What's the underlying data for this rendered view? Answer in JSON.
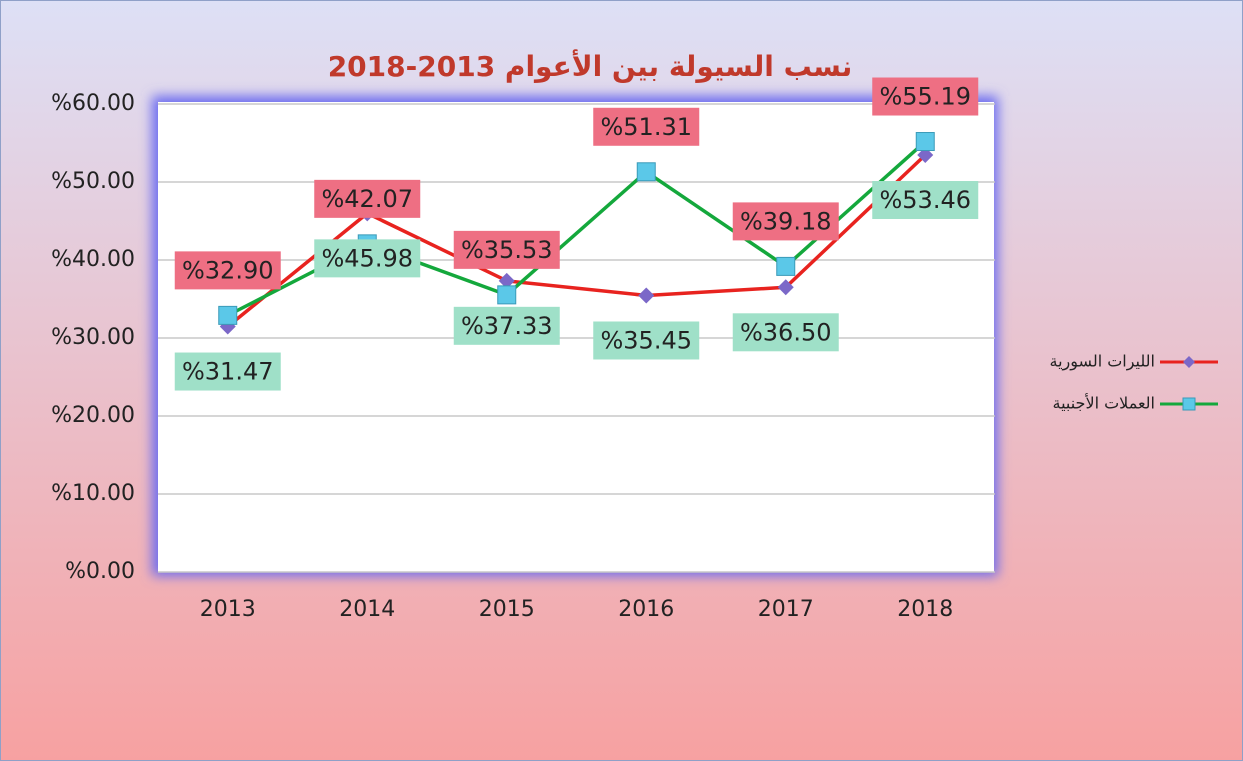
{
  "chart_data": {
    "type": "line",
    "title": "نسب السيولة بين الأعوام 2013-2018",
    "categories": [
      "2013",
      "2014",
      "2015",
      "2016",
      "2017",
      "2018"
    ],
    "series": [
      {
        "name": "الليرات السورية",
        "color": "#e8231f",
        "marker": "diamond",
        "marker_color": "#7b68c8",
        "label_color": "#9fe0c8",
        "values": [
          31.47,
          45.98,
          37.33,
          35.45,
          36.5,
          53.46
        ],
        "value_labels": [
          "%31.47",
          "%45.98",
          "%37.33",
          "%35.45",
          "%36.50",
          "%53.46"
        ]
      },
      {
        "name": "العملات الأجنبية",
        "color": "#14a83c",
        "marker": "square",
        "marker_color": "#5bc8e8",
        "label_color": "#ee6f83",
        "values": [
          32.9,
          42.07,
          35.53,
          51.31,
          39.18,
          55.19
        ],
        "value_labels": [
          "%32.90",
          "%42.07",
          "%35.53",
          "%51.31",
          "%39.18",
          "%55.19"
        ]
      }
    ],
    "ylim": [
      0,
      60
    ],
    "yticks": [
      {
        "value": 0,
        "label": "%0.00"
      },
      {
        "value": 10,
        "label": "%10.00"
      },
      {
        "value": 20,
        "label": "%20.00"
      },
      {
        "value": 30,
        "label": "%30.00"
      },
      {
        "value": 40,
        "label": "%40.00"
      },
      {
        "value": 50,
        "label": "%50.00"
      },
      {
        "value": 60,
        "label": "%60.00"
      }
    ],
    "grid": true,
    "legend": "right"
  }
}
